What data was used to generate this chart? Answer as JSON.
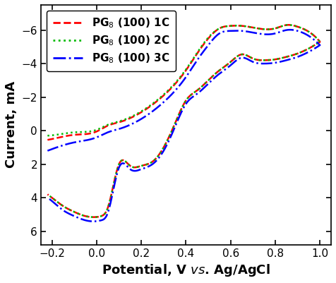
{
  "title": "",
  "xlabel": "Potential, V ×s. Ag/AgCl",
  "ylabel": "Current, mA",
  "xlim": [
    -0.25,
    1.05
  ],
  "ylim": [
    6.8,
    -7.5
  ],
  "xticks": [
    -0.2,
    0.0,
    0.2,
    0.4,
    0.6,
    0.8,
    1.0
  ],
  "yticks": [
    -6,
    -4,
    -2,
    0,
    2,
    4,
    6
  ],
  "legend_labels": [
    "PG$_8$ (100) 1C",
    "PG$_8$ (100) 2C",
    "PG$_8$ (100) 3C"
  ],
  "line1_color": "#ff0000",
  "line2_color": "#00bb00",
  "line3_color": "#0000ff",
  "background_color": "#ffffff",
  "label_fontsize": 13,
  "tick_fontsize": 11,
  "legend_fontsize": 11
}
